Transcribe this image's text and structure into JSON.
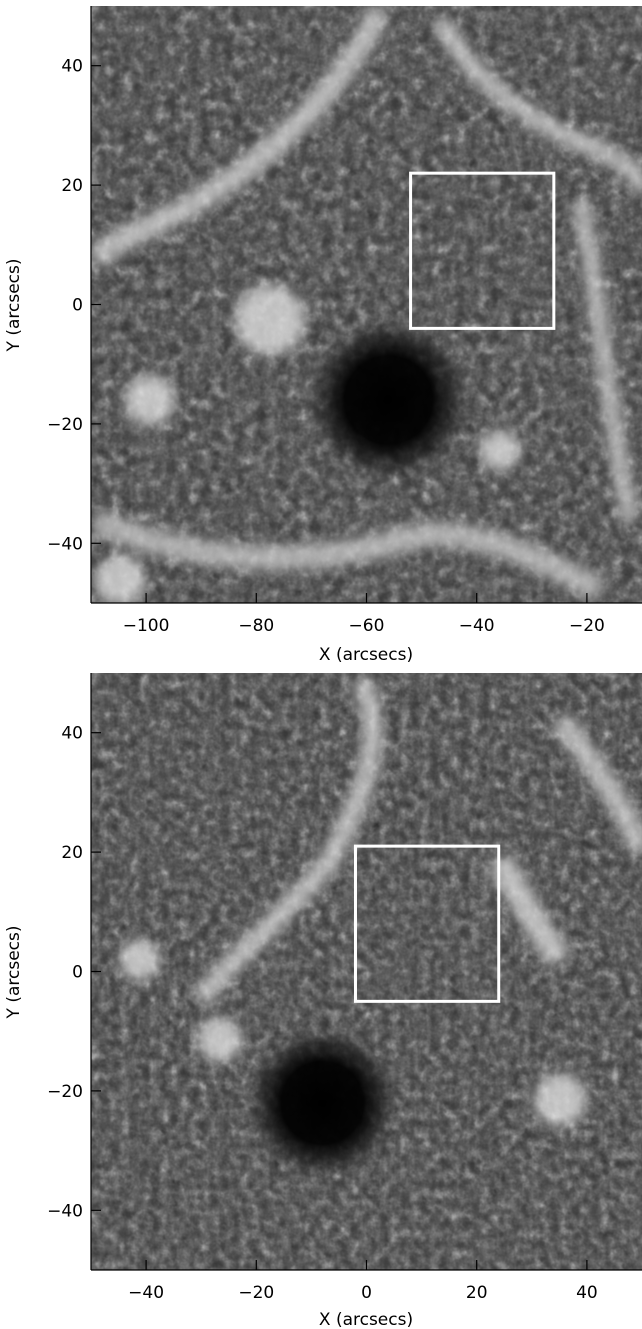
{
  "panels": [
    {
      "id": "top",
      "x_label": "X (arcsecs)",
      "y_label": "Y (arcsecs)",
      "x_range": [
        -110,
        -10
      ],
      "y_range": [
        -50,
        50
      ],
      "x_ticks": [
        -100,
        -80,
        -60,
        -40,
        -20
      ],
      "y_ticks": [
        -40,
        -20,
        0,
        20,
        40
      ],
      "box": {
        "x": [
          -52,
          -26
        ],
        "y": [
          -4,
          22
        ],
        "color": "#ffffff"
      },
      "umbra": {
        "x": -56,
        "y": -16
      }
    },
    {
      "id": "bottom",
      "x_label": "X (arcsecs)",
      "y_label": "Y (arcsecs)",
      "x_range": [
        -50,
        50
      ],
      "y_range": [
        -50,
        50
      ],
      "x_ticks": [
        -40,
        -20,
        0,
        20,
        40
      ],
      "y_ticks": [
        -40,
        -20,
        0,
        20,
        40
      ],
      "box": {
        "x": [
          -2,
          24
        ],
        "y": [
          -5,
          21
        ],
        "color": "#ffffff"
      },
      "umbra": {
        "x": -8,
        "y": -22
      }
    }
  ]
}
